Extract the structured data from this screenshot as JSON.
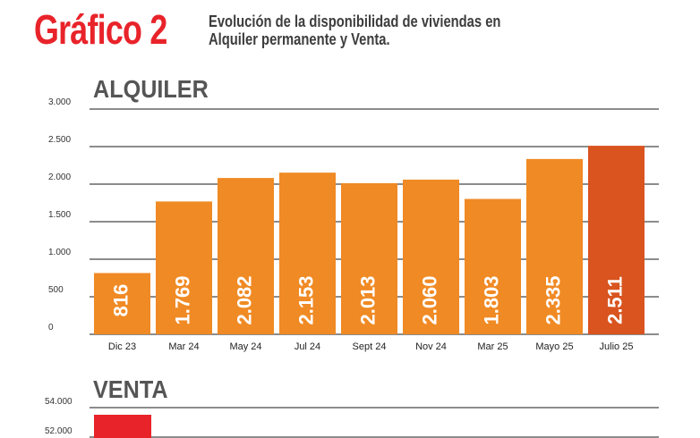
{
  "header": {
    "title": "Gráfico 2",
    "subtitle_line1": "Evolución de la disponibilidad de viviendas en",
    "subtitle_line2": "Alquiler permanente y Venta."
  },
  "colors": {
    "bar": "#f08a24",
    "highlight_bar": "#d9541f",
    "venta_bar": "#e8232a",
    "grid": "#1a1a1a",
    "title": "#e8232a"
  },
  "chart_data": [
    {
      "type": "bar",
      "title": "ALQUILER",
      "categories": [
        "Dic 23",
        "Mar 24",
        "May 24",
        "Jul 24",
        "Sept 24",
        "Nov 24",
        "Mar 25",
        "Mayo 25",
        "Julio 25"
      ],
      "values": [
        816,
        1769,
        2082,
        2153,
        2013,
        2060,
        1803,
        2335,
        2511
      ],
      "value_labels": [
        "816",
        "1.769",
        "2.082",
        "2.153",
        "2.013",
        "2.060",
        "1.803",
        "2.335",
        "2.511"
      ],
      "highlight_index": 8,
      "ylim": [
        0,
        3000
      ],
      "yticks": [
        0,
        500,
        1000,
        1500,
        2000,
        2500,
        3000
      ],
      "ytick_labels": [
        "0",
        "500",
        "1.000",
        "1.500",
        "2.000",
        "2.500",
        "3.000"
      ],
      "grid": true
    },
    {
      "type": "bar",
      "title": "VENTA",
      "ytick_labels": [
        "54.000",
        "52.000"
      ],
      "grid": true
    }
  ]
}
